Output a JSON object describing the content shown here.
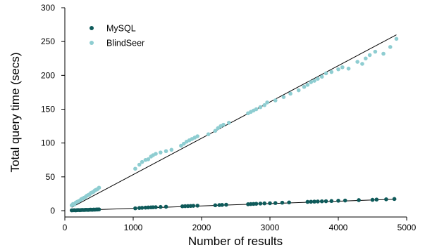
{
  "chart_data": {
    "type": "scatter",
    "title": "",
    "xlabel": "Number of results",
    "ylabel": "Total query time (secs)",
    "xlim": [
      0,
      5000
    ],
    "ylim": [
      0,
      300
    ],
    "x_ticks": [
      0,
      1000,
      2000,
      3000,
      4000,
      5000
    ],
    "y_ticks": [
      0,
      50,
      100,
      150,
      200,
      250,
      300
    ],
    "grid": false,
    "legend_position": "top-left",
    "series": [
      {
        "name": "MySQL",
        "color": "#0e5a5a",
        "fit_line": [
          [
            100,
            0.3
          ],
          [
            4850,
            17
          ]
        ],
        "points": [
          [
            100,
            0.5
          ],
          [
            120,
            0.6
          ],
          [
            140,
            0.7
          ],
          [
            160,
            0.5
          ],
          [
            180,
            0.8
          ],
          [
            200,
            0.9
          ],
          [
            220,
            0.7
          ],
          [
            240,
            1.0
          ],
          [
            260,
            1.1
          ],
          [
            280,
            1.0
          ],
          [
            300,
            1.2
          ],
          [
            320,
            1.3
          ],
          [
            340,
            1.1
          ],
          [
            360,
            1.4
          ],
          [
            380,
            1.5
          ],
          [
            400,
            1.3
          ],
          [
            420,
            1.6
          ],
          [
            440,
            1.5
          ],
          [
            460,
            1.7
          ],
          [
            480,
            1.8
          ],
          [
            500,
            1.9
          ],
          [
            1030,
            3.5
          ],
          [
            1090,
            4.0
          ],
          [
            1130,
            4.2
          ],
          [
            1180,
            4.5
          ],
          [
            1220,
            4.7
          ],
          [
            1260,
            4.9
          ],
          [
            1290,
            5.0
          ],
          [
            1330,
            5.2
          ],
          [
            1400,
            5.5
          ],
          [
            1480,
            5.8
          ],
          [
            1720,
            6.5
          ],
          [
            1760,
            6.7
          ],
          [
            1800,
            6.8
          ],
          [
            1840,
            7.0
          ],
          [
            1880,
            7.2
          ],
          [
            1940,
            7.4
          ],
          [
            2200,
            8.0
          ],
          [
            2260,
            8.3
          ],
          [
            2300,
            8.5
          ],
          [
            2360,
            8.8
          ],
          [
            2680,
            9.5
          ],
          [
            2720,
            9.8
          ],
          [
            2760,
            10.0
          ],
          [
            2800,
            10.2
          ],
          [
            2860,
            10.5
          ],
          [
            2920,
            10.8
          ],
          [
            3000,
            11.0
          ],
          [
            3080,
            11.3
          ],
          [
            3180,
            11.8
          ],
          [
            3280,
            12.2
          ],
          [
            3550,
            13.0
          ],
          [
            3600,
            13.2
          ],
          [
            3650,
            13.4
          ],
          [
            3700,
            13.6
          ],
          [
            3760,
            13.8
          ],
          [
            3820,
            14.0
          ],
          [
            3900,
            14.3
          ],
          [
            4000,
            14.7
          ],
          [
            4100,
            15.0
          ],
          [
            4300,
            15.6
          ],
          [
            4500,
            16.0
          ],
          [
            4560,
            16.4
          ],
          [
            4700,
            16.8
          ],
          [
            4820,
            17.3
          ]
        ]
      },
      {
        "name": "BlindSeer",
        "color": "#8ecdd1",
        "fit_line": [
          [
            100,
            5
          ],
          [
            4850,
            260
          ]
        ],
        "points": [
          [
            100,
            8
          ],
          [
            120,
            10
          ],
          [
            140,
            9
          ],
          [
            160,
            12
          ],
          [
            180,
            13
          ],
          [
            200,
            14
          ],
          [
            220,
            15
          ],
          [
            240,
            17
          ],
          [
            260,
            18
          ],
          [
            280,
            19
          ],
          [
            300,
            20
          ],
          [
            320,
            22
          ],
          [
            340,
            23
          ],
          [
            360,
            24
          ],
          [
            380,
            26
          ],
          [
            400,
            27
          ],
          [
            420,
            28
          ],
          [
            440,
            30
          ],
          [
            460,
            31
          ],
          [
            480,
            32
          ],
          [
            500,
            34
          ],
          [
            1030,
            62
          ],
          [
            1090,
            68
          ],
          [
            1130,
            72
          ],
          [
            1180,
            75
          ],
          [
            1220,
            76
          ],
          [
            1260,
            80
          ],
          [
            1290,
            82
          ],
          [
            1330,
            84
          ],
          [
            1400,
            86
          ],
          [
            1480,
            88
          ],
          [
            1560,
            90
          ],
          [
            1700,
            96
          ],
          [
            1740,
            99
          ],
          [
            1780,
            102
          ],
          [
            1820,
            104
          ],
          [
            1860,
            106
          ],
          [
            1900,
            108
          ],
          [
            1940,
            110
          ],
          [
            2100,
            113
          ],
          [
            2200,
            118
          ],
          [
            2240,
            122
          ],
          [
            2280,
            125
          ],
          [
            2320,
            127
          ],
          [
            2400,
            130
          ],
          [
            2680,
            144
          ],
          [
            2720,
            146
          ],
          [
            2760,
            148
          ],
          [
            2800,
            150
          ],
          [
            2860,
            153
          ],
          [
            2920,
            156
          ],
          [
            2960,
            160
          ],
          [
            3080,
            163
          ],
          [
            3200,
            168
          ],
          [
            3300,
            173
          ],
          [
            3420,
            178
          ],
          [
            3500,
            183
          ],
          [
            3550,
            186
          ],
          [
            3600,
            190
          ],
          [
            3650,
            192
          ],
          [
            3700,
            195
          ],
          [
            3760,
            198
          ],
          [
            3820,
            203
          ],
          [
            3900,
            205
          ],
          [
            4000,
            209
          ],
          [
            4060,
            212
          ],
          [
            4150,
            210
          ],
          [
            4280,
            220
          ],
          [
            4350,
            217
          ],
          [
            4400,
            225
          ],
          [
            4460,
            230
          ],
          [
            4540,
            235
          ],
          [
            4660,
            232
          ],
          [
            4760,
            242
          ],
          [
            4850,
            254
          ]
        ]
      }
    ]
  }
}
